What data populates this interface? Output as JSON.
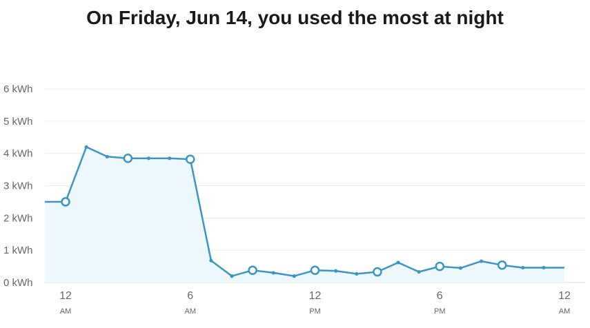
{
  "chart_data": {
    "type": "area",
    "title": "On Friday, Jun 14, you used the most at night",
    "xlabel": "",
    "ylabel": "",
    "y_unit": "kWh",
    "ylim": [
      0,
      6
    ],
    "yticks": [
      {
        "value": 0,
        "label": "0 kWh"
      },
      {
        "value": 1,
        "label": "1 kWh"
      },
      {
        "value": 2,
        "label": "2 kWh"
      },
      {
        "value": 3,
        "label": "3 kWh"
      },
      {
        "value": 4,
        "label": "4 kWh"
      },
      {
        "value": 5,
        "label": "5 kWh"
      },
      {
        "value": 6,
        "label": "6 kWh"
      }
    ],
    "xticks": [
      {
        "hour": 0,
        "label": "12",
        "sublabel": "AM"
      },
      {
        "hour": 6,
        "label": "6",
        "sublabel": "AM"
      },
      {
        "hour": 12,
        "label": "12",
        "sublabel": "PM"
      },
      {
        "hour": 18,
        "label": "6",
        "sublabel": "PM"
      },
      {
        "hour": 24,
        "label": "12",
        "sublabel": "AM"
      }
    ],
    "grid": true,
    "series": [
      {
        "color": "#3a95c4",
        "fill": "#ecf8fc",
        "leading_value": 2.5,
        "points": [
          {
            "hour": 0,
            "value": 2.5,
            "marker": "ring"
          },
          {
            "hour": 1,
            "value": 4.2,
            "marker": "dot"
          },
          {
            "hour": 2,
            "value": 3.9,
            "marker": "dot"
          },
          {
            "hour": 3,
            "value": 3.85,
            "marker": "ring"
          },
          {
            "hour": 4,
            "value": 3.85,
            "marker": "dot"
          },
          {
            "hour": 5,
            "value": 3.85,
            "marker": "dot"
          },
          {
            "hour": 6,
            "value": 3.82,
            "marker": "ring"
          },
          {
            "hour": 7,
            "value": 0.68,
            "marker": "dot"
          },
          {
            "hour": 8,
            "value": 0.2,
            "marker": "dot"
          },
          {
            "hour": 9,
            "value": 0.38,
            "marker": "ring"
          },
          {
            "hour": 10,
            "value": 0.3,
            "marker": "dot"
          },
          {
            "hour": 11,
            "value": 0.2,
            "marker": "dot"
          },
          {
            "hour": 12,
            "value": 0.38,
            "marker": "ring"
          },
          {
            "hour": 13,
            "value": 0.36,
            "marker": "dot"
          },
          {
            "hour": 14,
            "value": 0.27,
            "marker": "dot"
          },
          {
            "hour": 15,
            "value": 0.33,
            "marker": "ring"
          },
          {
            "hour": 16,
            "value": 0.62,
            "marker": "dot"
          },
          {
            "hour": 17,
            "value": 0.33,
            "marker": "dot"
          },
          {
            "hour": 18,
            "value": 0.5,
            "marker": "ring"
          },
          {
            "hour": 19,
            "value": 0.45,
            "marker": "dot"
          },
          {
            "hour": 20,
            "value": 0.66,
            "marker": "dot"
          },
          {
            "hour": 21,
            "value": 0.54,
            "marker": "ring"
          },
          {
            "hour": 22,
            "value": 0.46,
            "marker": "dot"
          },
          {
            "hour": 23,
            "value": 0.46,
            "marker": "dot"
          },
          {
            "hour": 24,
            "value": 0.46,
            "marker": "none"
          }
        ]
      }
    ]
  }
}
